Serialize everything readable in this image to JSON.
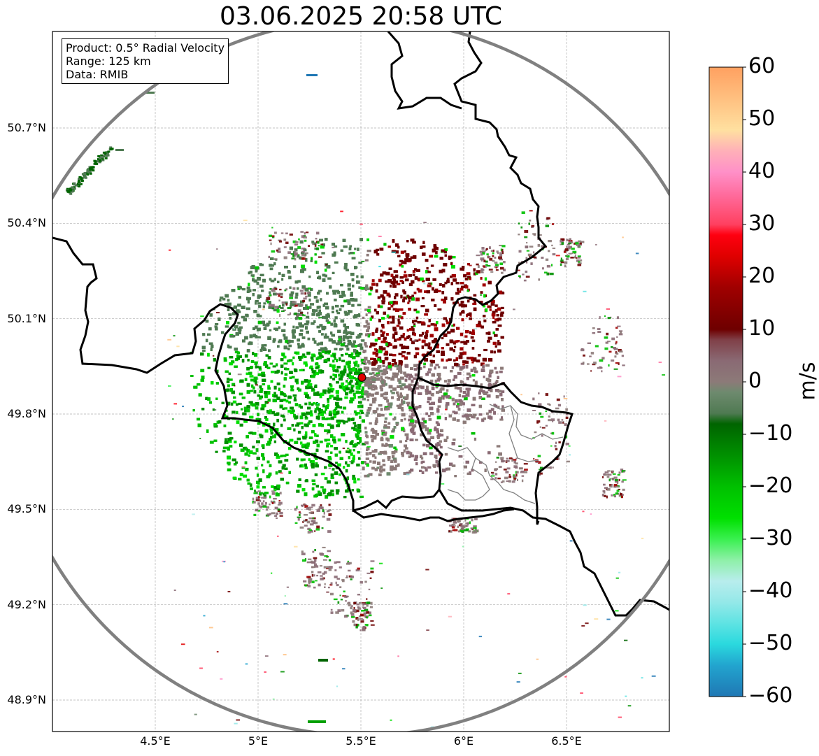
{
  "title": "03.06.2025 20:58 UTC",
  "info": {
    "product": "Product: 0.5° Radial Velocity",
    "range": "Range: 125 km",
    "data": "Data: RMIB"
  },
  "map": {
    "lon_range": [
      4.0,
      7.0
    ],
    "lat_range": [
      48.8,
      51.0
    ],
    "lat_ticks": [
      {
        "value": 50.7,
        "label": "50.7°N"
      },
      {
        "value": 50.4,
        "label": "50.4°N"
      },
      {
        "value": 50.1,
        "label": "50.1°N"
      },
      {
        "value": 49.8,
        "label": "49.8°N"
      },
      {
        "value": 49.5,
        "label": "49.5°N"
      },
      {
        "value": 49.2,
        "label": "49.2°N"
      },
      {
        "value": 48.9,
        "label": "48.9°N"
      }
    ],
    "lon_ticks": [
      {
        "value": 4.5,
        "label": "4.5°E"
      },
      {
        "value": 5.0,
        "label": "5°E"
      },
      {
        "value": 5.5,
        "label": "5.5°E"
      },
      {
        "value": 6.0,
        "label": "6°E"
      },
      {
        "value": 6.5,
        "label": "6.5°E"
      }
    ],
    "radar_site": {
      "lon": 5.505,
      "lat": 49.915
    },
    "range_ring_color": "#808080",
    "border_color": "#000000",
    "province_color": "#808080",
    "gridline_style": "dashed grey"
  },
  "colorbar": {
    "unit": "m/s",
    "vmin": -60,
    "vmax": 60,
    "ticks": [
      {
        "value": 60,
        "label": "60"
      },
      {
        "value": 50,
        "label": "50"
      },
      {
        "value": 40,
        "label": "40"
      },
      {
        "value": 30,
        "label": "30"
      },
      {
        "value": 20,
        "label": "20"
      },
      {
        "value": 10,
        "label": "10"
      },
      {
        "value": 0,
        "label": "0"
      },
      {
        "value": -10,
        "label": "−10"
      },
      {
        "value": -20,
        "label": "−20"
      },
      {
        "value": -30,
        "label": "−30"
      },
      {
        "value": -40,
        "label": "−40"
      },
      {
        "value": -50,
        "label": "−50"
      },
      {
        "value": -60,
        "label": "−60"
      }
    ],
    "stops": [
      {
        "value": -60,
        "color": "#1f77b4"
      },
      {
        "value": -54,
        "color": "#22a5cf"
      },
      {
        "value": -50,
        "color": "#2ad9de"
      },
      {
        "value": -46,
        "color": "#5fe3e3"
      },
      {
        "value": -42,
        "color": "#94e8e8"
      },
      {
        "value": -38,
        "color": "#b8eded"
      },
      {
        "value": -34,
        "color": "#8ef0a8"
      },
      {
        "value": -30,
        "color": "#3af050"
      },
      {
        "value": -26,
        "color": "#00e000"
      },
      {
        "value": -20,
        "color": "#00c000"
      },
      {
        "value": -14,
        "color": "#009000"
      },
      {
        "value": -8,
        "color": "#006400"
      },
      {
        "value": -6,
        "color": "#4f7a52"
      },
      {
        "value": -2,
        "color": "#6e8a6e"
      },
      {
        "value": 0,
        "color": "#8c7a78"
      },
      {
        "value": 4,
        "color": "#8a6a74"
      },
      {
        "value": 8,
        "color": "#804048"
      },
      {
        "value": 10,
        "color": "#6e0000"
      },
      {
        "value": 18,
        "color": "#a00000"
      },
      {
        "value": 24,
        "color": "#e00000"
      },
      {
        "value": 28,
        "color": "#ff0010"
      },
      {
        "value": 30,
        "color": "#ff4060"
      },
      {
        "value": 36,
        "color": "#ff6ea0"
      },
      {
        "value": 40,
        "color": "#ff90c8"
      },
      {
        "value": 44,
        "color": "#ffb0b8"
      },
      {
        "value": 48,
        "color": "#ffe0a0"
      },
      {
        "value": 54,
        "color": "#ffc080"
      },
      {
        "value": 60,
        "color": "#ffa060"
      }
    ]
  }
}
